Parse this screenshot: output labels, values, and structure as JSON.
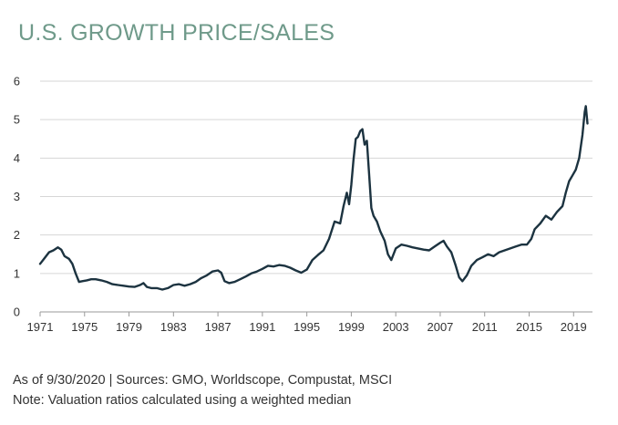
{
  "title": "U.S. GROWTH PRICE/SALES",
  "footnotes": {
    "source": "As of 9/30/2020 | Sources: GMO, Worldscope, Compustat, MSCI",
    "note": "Note: Valuation ratios calculated using a weighted median"
  },
  "colors": {
    "line": "#1c3340",
    "title": "#6f9a8a",
    "grid": "#d6d6d6"
  },
  "chart_data": {
    "type": "line",
    "title": "U.S. GROWTH PRICE/SALES",
    "xlabel": "",
    "ylabel": "",
    "xlim": [
      1971,
      2020.7
    ],
    "ylim": [
      0,
      6
    ],
    "grid": "horizontal",
    "legend": "none",
    "x_ticks": [
      "1971",
      "1975",
      "1979",
      "1983",
      "1987",
      "1991",
      "1995",
      "1999",
      "2003",
      "2007",
      "2011",
      "2015",
      "2019"
    ],
    "y_ticks": [
      "0",
      "1",
      "2",
      "3",
      "4",
      "5",
      "6"
    ],
    "series": [
      {
        "values": [
          [
            1971.0,
            1.25
          ],
          [
            1971.4,
            1.4
          ],
          [
            1971.8,
            1.55
          ],
          [
            1972.2,
            1.6
          ],
          [
            1972.6,
            1.68
          ],
          [
            1972.9,
            1.62
          ],
          [
            1973.2,
            1.45
          ],
          [
            1973.6,
            1.38
          ],
          [
            1973.9,
            1.25
          ],
          [
            1974.2,
            1.0
          ],
          [
            1974.5,
            0.78
          ],
          [
            1974.8,
            0.8
          ],
          [
            1975.2,
            0.82
          ],
          [
            1975.6,
            0.85
          ],
          [
            1976.0,
            0.85
          ],
          [
            1976.5,
            0.82
          ],
          [
            1977.0,
            0.78
          ],
          [
            1977.5,
            0.72
          ],
          [
            1978.0,
            0.7
          ],
          [
            1978.5,
            0.68
          ],
          [
            1979.0,
            0.66
          ],
          [
            1979.5,
            0.65
          ],
          [
            1980.0,
            0.7
          ],
          [
            1980.3,
            0.75
          ],
          [
            1980.6,
            0.65
          ],
          [
            1981.0,
            0.62
          ],
          [
            1981.5,
            0.62
          ],
          [
            1982.0,
            0.58
          ],
          [
            1982.5,
            0.62
          ],
          [
            1983.0,
            0.7
          ],
          [
            1983.5,
            0.72
          ],
          [
            1984.0,
            0.68
          ],
          [
            1984.5,
            0.72
          ],
          [
            1985.0,
            0.78
          ],
          [
            1985.5,
            0.88
          ],
          [
            1986.0,
            0.95
          ],
          [
            1986.5,
            1.05
          ],
          [
            1987.0,
            1.08
          ],
          [
            1987.3,
            1.02
          ],
          [
            1987.6,
            0.8
          ],
          [
            1988.0,
            0.75
          ],
          [
            1988.5,
            0.78
          ],
          [
            1989.0,
            0.85
          ],
          [
            1989.5,
            0.92
          ],
          [
            1990.0,
            1.0
          ],
          [
            1990.5,
            1.05
          ],
          [
            1991.0,
            1.12
          ],
          [
            1991.5,
            1.2
          ],
          [
            1992.0,
            1.18
          ],
          [
            1992.5,
            1.22
          ],
          [
            1993.0,
            1.2
          ],
          [
            1993.5,
            1.15
          ],
          [
            1994.0,
            1.08
          ],
          [
            1994.5,
            1.02
          ],
          [
            1995.0,
            1.1
          ],
          [
            1995.5,
            1.35
          ],
          [
            1996.0,
            1.48
          ],
          [
            1996.5,
            1.6
          ],
          [
            1997.0,
            1.9
          ],
          [
            1997.5,
            2.35
          ],
          [
            1998.0,
            2.3
          ],
          [
            1998.3,
            2.75
          ],
          [
            1998.6,
            3.1
          ],
          [
            1998.8,
            2.8
          ],
          [
            1999.0,
            3.3
          ],
          [
            1999.2,
            3.95
          ],
          [
            1999.4,
            4.5
          ],
          [
            1999.6,
            4.55
          ],
          [
            1999.8,
            4.7
          ],
          [
            2000.0,
            4.75
          ],
          [
            2000.2,
            4.35
          ],
          [
            2000.4,
            4.45
          ],
          [
            2000.6,
            3.6
          ],
          [
            2000.8,
            2.7
          ],
          [
            2001.0,
            2.5
          ],
          [
            2001.3,
            2.35
          ],
          [
            2001.6,
            2.1
          ],
          [
            2002.0,
            1.85
          ],
          [
            2002.3,
            1.5
          ],
          [
            2002.6,
            1.35
          ],
          [
            2003.0,
            1.65
          ],
          [
            2003.5,
            1.75
          ],
          [
            2004.0,
            1.72
          ],
          [
            2004.5,
            1.68
          ],
          [
            2005.0,
            1.65
          ],
          [
            2005.5,
            1.62
          ],
          [
            2006.0,
            1.6
          ],
          [
            2006.5,
            1.7
          ],
          [
            2007.0,
            1.8
          ],
          [
            2007.3,
            1.85
          ],
          [
            2007.6,
            1.7
          ],
          [
            2008.0,
            1.55
          ],
          [
            2008.4,
            1.2
          ],
          [
            2008.7,
            0.9
          ],
          [
            2009.0,
            0.8
          ],
          [
            2009.4,
            0.95
          ],
          [
            2009.8,
            1.2
          ],
          [
            2010.3,
            1.35
          ],
          [
            2010.8,
            1.42
          ],
          [
            2011.3,
            1.5
          ],
          [
            2011.8,
            1.45
          ],
          [
            2012.3,
            1.55
          ],
          [
            2012.8,
            1.6
          ],
          [
            2013.3,
            1.65
          ],
          [
            2013.8,
            1.7
          ],
          [
            2014.3,
            1.75
          ],
          [
            2014.8,
            1.75
          ],
          [
            2015.2,
            1.9
          ],
          [
            2015.5,
            2.15
          ],
          [
            2016.0,
            2.3
          ],
          [
            2016.5,
            2.5
          ],
          [
            2017.0,
            2.4
          ],
          [
            2017.5,
            2.6
          ],
          [
            2018.0,
            2.75
          ],
          [
            2018.3,
            3.1
          ],
          [
            2018.6,
            3.4
          ],
          [
            2018.9,
            3.55
          ],
          [
            2019.2,
            3.7
          ],
          [
            2019.5,
            4.0
          ],
          [
            2019.8,
            4.6
          ],
          [
            2020.0,
            5.2
          ],
          [
            2020.1,
            5.35
          ],
          [
            2020.25,
            4.9
          ]
        ]
      }
    ]
  }
}
